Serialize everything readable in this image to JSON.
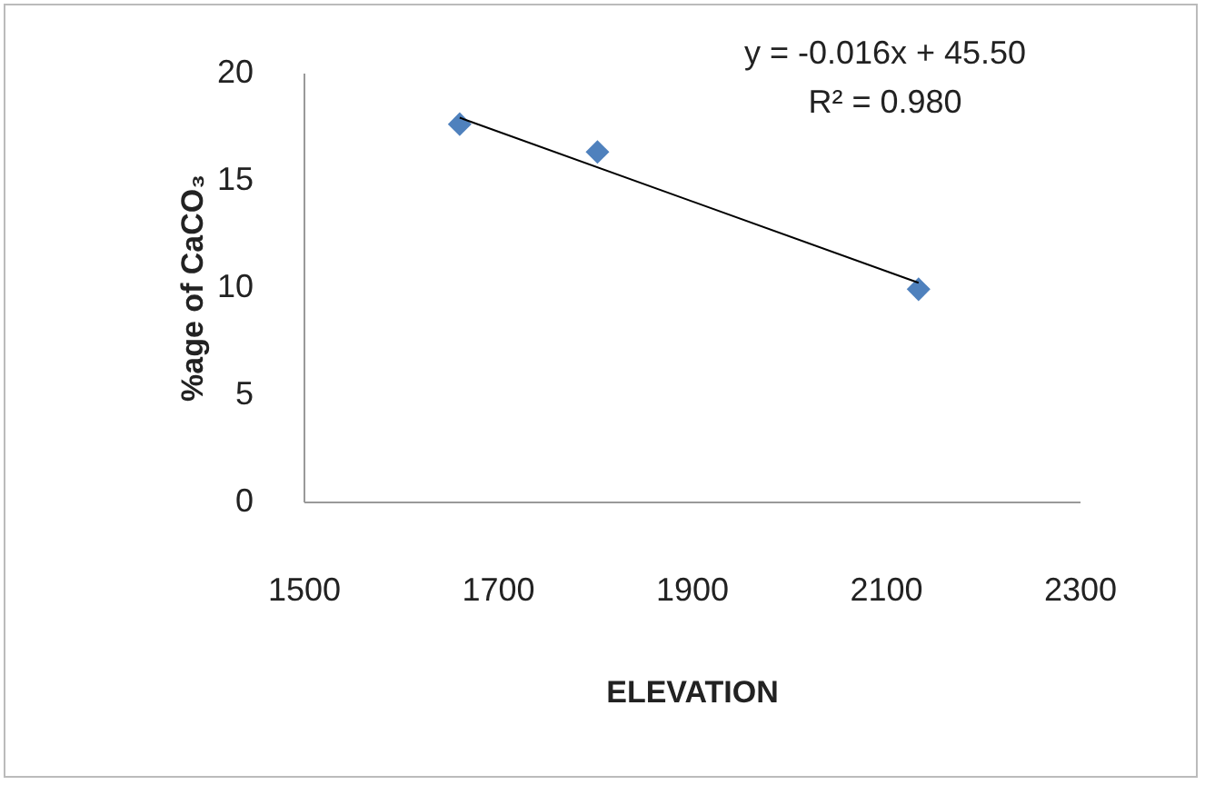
{
  "chart_data": {
    "type": "scatter",
    "xlabel": "ELEVATION",
    "ylabel": "%age of CaCO₃",
    "annotations": [
      "y = -0.016x + 45.50",
      "R² = 0.980"
    ],
    "xlim": [
      1500,
      2300
    ],
    "xticks": [
      1500,
      1700,
      1900,
      2100,
      2300
    ],
    "ylim": [
      0,
      20
    ],
    "yticks": [
      0,
      5,
      10,
      15,
      20
    ],
    "marker": "diamond",
    "series": [
      {
        "color": "#4f81bd",
        "x": [
          1661,
          1803,
          2134
        ],
        "values": [
          17.6,
          16.3,
          9.9
        ]
      },
      {
        "type": "line",
        "color": "#000000",
        "x": [
          1661,
          2134
        ],
        "values": [
          17.9,
          10.2
        ],
        "marker": "none"
      }
    ]
  }
}
